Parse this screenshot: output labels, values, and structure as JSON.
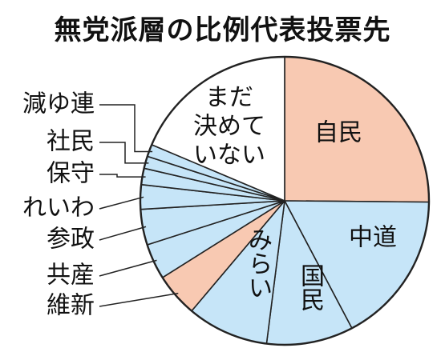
{
  "chart_data": {
    "type": "pie",
    "title": "無党派層の比例代表投票先",
    "colors": {
      "highlight": "#F8C9B2",
      "blue": "#C6E5F8",
      "white": "#FFFFFF",
      "stroke": "#222222"
    },
    "slices": [
      {
        "key": "jimin",
        "label": "自民",
        "value": 22.0,
        "color_key": "highlight",
        "label_position": "inside"
      },
      {
        "key": "chudo",
        "label": "中道",
        "value": 15.0,
        "color_key": "blue",
        "label_position": "inside"
      },
      {
        "key": "kokumin",
        "label": "国民",
        "value": 8.5,
        "color_key": "blue",
        "label_position": "inside"
      },
      {
        "key": "mirai",
        "label": "みらい",
        "value": 8.0,
        "color_key": "blue",
        "label_position": "inside"
      },
      {
        "key": "ishin",
        "label": "維新",
        "value": 4.3,
        "color_key": "highlight",
        "label_position": "outside"
      },
      {
        "key": "kyosan",
        "label": "共産",
        "value": 3.5,
        "color_key": "blue",
        "label_position": "outside"
      },
      {
        "key": "sansei",
        "label": "参政",
        "value": 3.5,
        "color_key": "blue",
        "label_position": "outside"
      },
      {
        "key": "reiwa",
        "label": "れいわ",
        "value": 2.4,
        "color_key": "blue",
        "label_position": "outside"
      },
      {
        "key": "hoshu",
        "label": "保守",
        "value": 1.6,
        "color_key": "blue",
        "label_position": "outside"
      },
      {
        "key": "shamin",
        "label": "社民",
        "value": 1.2,
        "color_key": "blue",
        "label_position": "outside"
      },
      {
        "key": "genzeiyu",
        "label": "減ゆ連",
        "value": 1.2,
        "color_key": "blue",
        "label_position": "outside"
      },
      {
        "key": "undecided",
        "label": "まだ決めていない",
        "label_lines": [
          "まだ",
          "決めて",
          "いない"
        ],
        "value": 16.3,
        "color_key": "white",
        "label_position": "inside"
      }
    ]
  }
}
